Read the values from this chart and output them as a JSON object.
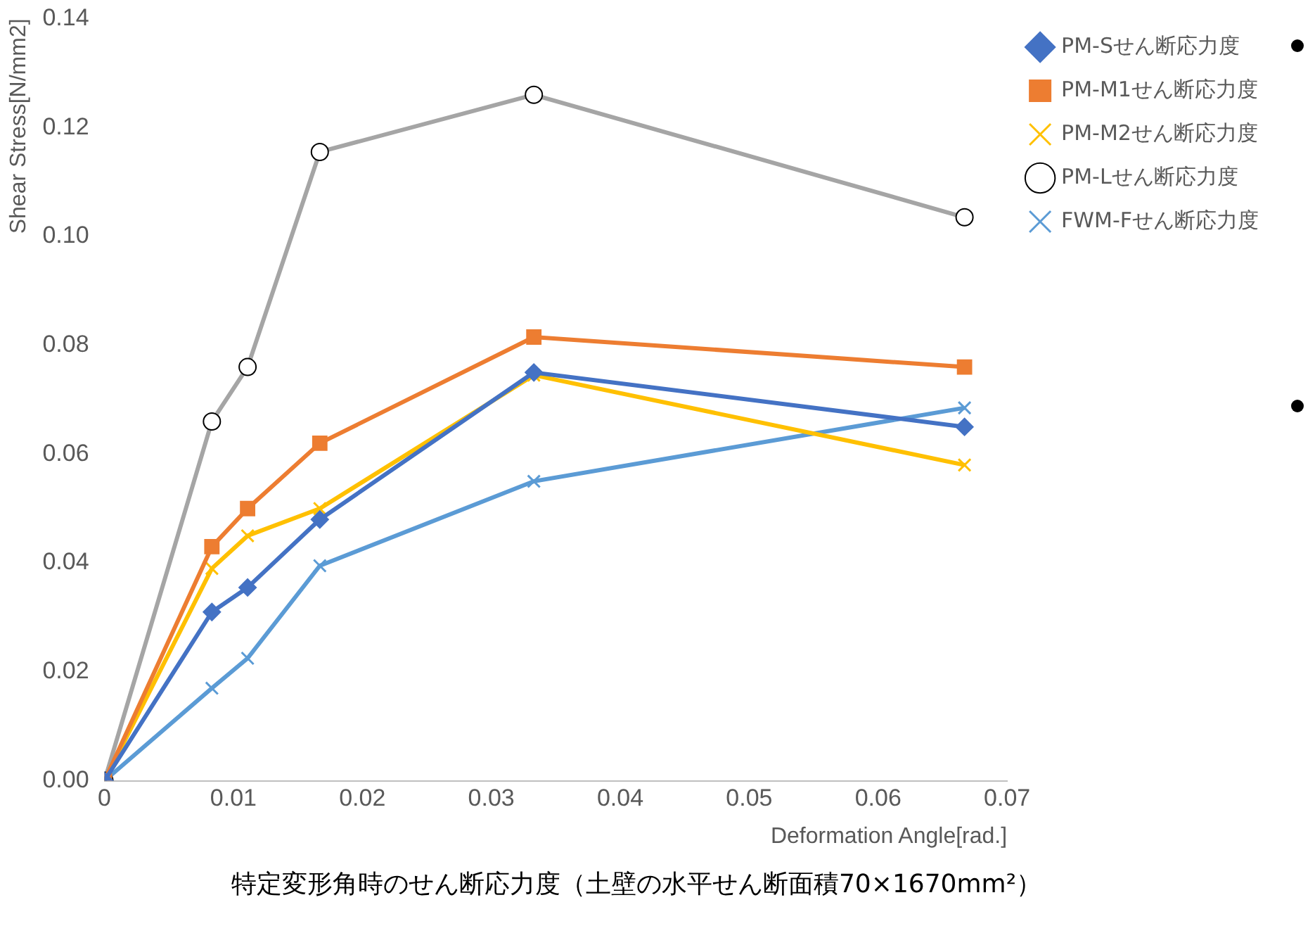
{
  "chart_data": {
    "type": "line",
    "title": "特定変形角時のせん断応力度（土壁の水平せん断面積70×1670mm²）",
    "xlabel": "Deformation Angle[rad.]",
    "ylabel": "Shear Stress[N/mm2]",
    "x": [
      0,
      0.00833,
      0.0111,
      0.0167,
      0.0333,
      0.0667
    ],
    "series": [
      {
        "name": "PM-Sせん断応力度",
        "color": "#4472c4",
        "marker": "diamond",
        "values": [
          0,
          0.031,
          0.0355,
          0.048,
          0.075,
          0.065
        ]
      },
      {
        "name": "PM-M1せん断応力度",
        "color": "#ed7d31",
        "marker": "square",
        "values": [
          0,
          0.043,
          0.05,
          0.062,
          0.0815,
          0.076
        ]
      },
      {
        "name": "PM-M2せん断応力度",
        "color": "#ffc000",
        "marker": "cross",
        "values": [
          0,
          0.039,
          0.045,
          0.05,
          0.0745,
          0.058
        ]
      },
      {
        "name": "PM-Lせん断応力度",
        "color": "#a5a5a5",
        "marker": "circle",
        "values": [
          0,
          0.066,
          0.076,
          0.1155,
          0.126,
          0.1035
        ]
      },
      {
        "name": "FWM-Fせん断応力度",
        "color": "#5b9bd5",
        "marker": "cross",
        "values": [
          0,
          0.017,
          0.0225,
          0.0395,
          0.055,
          0.0685
        ]
      }
    ],
    "xlim": [
      0,
      0.07
    ],
    "xticks": [
      0,
      0.01,
      0.02,
      0.03,
      0.04,
      0.05,
      0.06,
      0.07
    ],
    "ylim": [
      0,
      0.14
    ],
    "yticks": [
      {
        "value": 0,
        "label": "0.00"
      },
      {
        "value": 0.02,
        "label": "0.02"
      },
      {
        "value": 0.04,
        "label": "0.04"
      },
      {
        "value": 0.06,
        "label": "0.06"
      },
      {
        "value": 0.08,
        "label": "0.08"
      },
      {
        "value": 0.1,
        "label": "0.10"
      },
      {
        "value": 0.12,
        "label": "0.12"
      },
      {
        "value": 0.14,
        "label": "0.14"
      }
    ],
    "grid": false,
    "legend": "right",
    "line_style": "solid"
  }
}
